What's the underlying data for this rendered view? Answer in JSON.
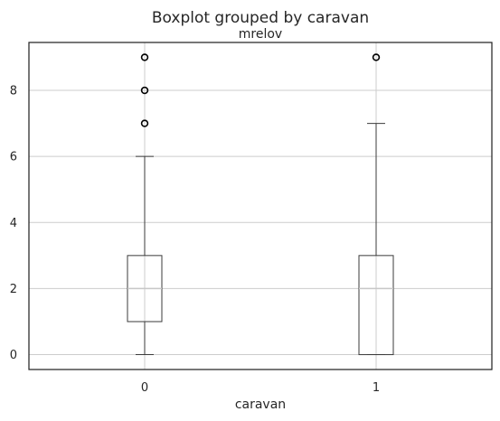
{
  "chart_data": {
    "type": "boxplot",
    "suptitle": "Boxplot grouped by caravan",
    "title": "mrelov",
    "xlabel": "caravan",
    "ylabel": "",
    "categories": [
      "0",
      "1"
    ],
    "yticks": [
      0,
      2,
      4,
      6,
      8
    ],
    "ylim": [
      -0.45,
      9.45
    ],
    "grid": true,
    "boxes": [
      {
        "category": "0",
        "whisker_low": 0,
        "q1": 1,
        "median": 2,
        "q3": 3,
        "whisker_high": 6,
        "outliers": [
          7,
          8,
          9
        ]
      },
      {
        "category": "1",
        "whisker_low": 0,
        "q1": 0,
        "median": 2,
        "q3": 3,
        "whisker_high": 7,
        "outliers": [
          9
        ]
      }
    ]
  },
  "colors": {
    "box": "#3b3b3b",
    "median": "#c7c7c7",
    "grid": "#cccccc",
    "axes": "#262626"
  }
}
